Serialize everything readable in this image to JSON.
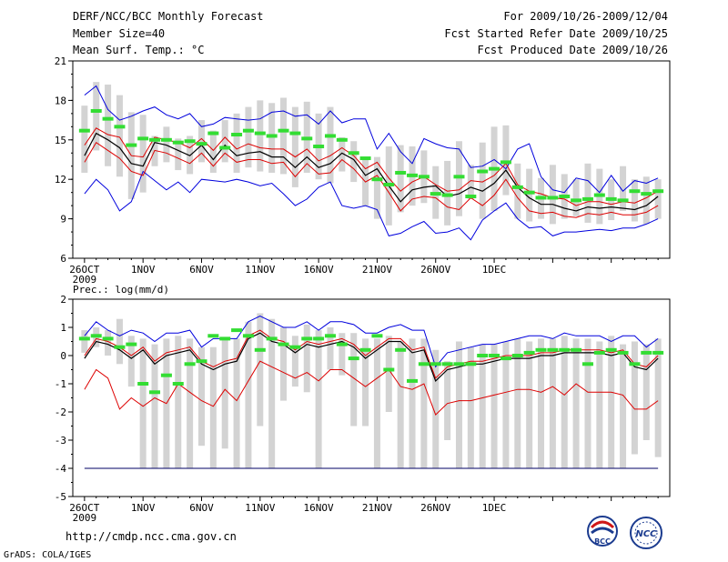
{
  "header": {
    "title": "DERF/NCC/BCC Monthly Forecast",
    "member": "Member Size=40",
    "variable": "Mean Surf. Temp.: °C",
    "period": "For 2009/10/26-2009/12/04",
    "started": "Fcst Started Refer Date 2009/10/25",
    "produced": "Fcst Produced Date 2009/10/26"
  },
  "footer": {
    "url": "http://cmdp.ncc.cma.gov.cn",
    "grads": "GrADS: COLA/IGES",
    "logo_bcc": "BCC",
    "logo_ncc": "NCC"
  },
  "colors": {
    "box": "#d3d3d3",
    "mean": "#000000",
    "inner": "#dd0000",
    "outer": "#0000dd",
    "obs": "#33dd33",
    "baseline": "#000066"
  },
  "chart_data": [
    {
      "type": "line",
      "title": "Mean Surf. Temp.: °C",
      "ylim": [
        6,
        21
      ],
      "yticks": [
        "6",
        "9",
        "12",
        "15",
        "18",
        "21"
      ],
      "xticks": [
        "26OCT",
        "1NOV",
        "6NOV",
        "11NOV",
        "16NOV",
        "21NOV",
        "26NOV",
        "1DEC"
      ],
      "xtick_sub": "2009",
      "box_low": [
        12.5,
        14.2,
        13.0,
        12.2,
        10.5,
        11.0,
        13.0,
        13.3,
        12.7,
        12.4,
        13.3,
        12.5,
        13.3,
        12.5,
        12.9,
        12.6,
        12.5,
        12.4,
        11.4,
        12.5,
        12.0,
        11.7,
        12.6,
        11.8,
        10.0,
        9.0,
        8.5,
        9.5,
        10.0,
        10.2,
        9.0,
        8.5,
        9.2,
        10.5,
        9.0,
        9.6,
        10.8,
        9.0,
        8.8,
        9.0,
        8.6,
        9.0,
        9.2,
        8.7,
        8.6,
        8.9,
        9.6,
        8.8,
        8.6,
        9.0
      ],
      "box_high": [
        17.6,
        19.4,
        19.2,
        18.4,
        17.1,
        16.9,
        15.3,
        16.0,
        15.1,
        15.3,
        16.5,
        15.7,
        16.5,
        17.0,
        17.5,
        18.0,
        17.8,
        18.2,
        17.5,
        17.9,
        17.0,
        17.5,
        15.2,
        14.9,
        13.5,
        13.7,
        14.5,
        14.6,
        14.5,
        14.2,
        13.0,
        13.4,
        14.9,
        13.1,
        14.8,
        16.0,
        16.1,
        13.2,
        12.8,
        12.1,
        13.1,
        12.4,
        12.0,
        13.2,
        12.8,
        12.0,
        13.0,
        12.0,
        12.2,
        12.0
      ],
      "mean": [
        13.8,
        15.5,
        15.0,
        14.4,
        13.2,
        13.0,
        14.8,
        14.6,
        14.2,
        13.8,
        14.6,
        13.5,
        14.6,
        13.8,
        14.0,
        14.1,
        13.7,
        13.7,
        12.9,
        13.7,
        12.9,
        13.2,
        14.0,
        13.5,
        12.3,
        12.8,
        11.5,
        10.3,
        11.2,
        11.4,
        11.5,
        10.7,
        10.9,
        11.4,
        11.1,
        11.7,
        12.7,
        11.4,
        10.6,
        10.1,
        10.1,
        9.8,
        9.6,
        9.9,
        9.8,
        9.9,
        9.8,
        9.7,
        10.0,
        10.7
      ],
      "inner_high": [
        14.6,
        15.9,
        15.4,
        15.2,
        13.8,
        13.7,
        15.2,
        15.0,
        14.8,
        14.4,
        15.1,
        14.2,
        15.2,
        14.3,
        14.7,
        14.4,
        14.3,
        14.3,
        13.7,
        14.3,
        13.4,
        13.8,
        14.4,
        13.8,
        12.8,
        13.3,
        12.1,
        11.1,
        11.8,
        12.2,
        11.6,
        11.1,
        11.2,
        11.9,
        11.8,
        12.3,
        13.2,
        11.6,
        11.1,
        10.9,
        10.6,
        10.5,
        10.0,
        10.3,
        10.3,
        10.1,
        10.3,
        10.2,
        10.6,
        11.1
      ],
      "inner_low": [
        13.3,
        14.8,
        14.2,
        13.6,
        12.6,
        12.3,
        14.2,
        14.0,
        13.6,
        13.2,
        14.0,
        13.0,
        14.0,
        13.3,
        13.5,
        13.5,
        13.2,
        13.3,
        12.2,
        13.2,
        12.4,
        12.5,
        13.5,
        12.8,
        11.8,
        12.3,
        11.0,
        9.6,
        10.5,
        10.7,
        10.6,
        9.9,
        9.7,
        10.6,
        10.0,
        10.8,
        12.0,
        10.6,
        9.6,
        9.4,
        9.5,
        9.2,
        9.1,
        9.4,
        9.3,
        9.5,
        9.3,
        9.3,
        9.5,
        10.0
      ],
      "outer_high": [
        18.4,
        19.1,
        17.3,
        16.5,
        16.8,
        17.2,
        17.5,
        16.9,
        16.6,
        17.0,
        16.0,
        16.2,
        16.7,
        16.6,
        16.5,
        16.6,
        17.1,
        17.2,
        16.8,
        16.9,
        16.2,
        17.2,
        16.3,
        16.6,
        16.6,
        14.3,
        15.5,
        14.1,
        13.2,
        15.1,
        14.7,
        14.4,
        14.3,
        12.9,
        13.0,
        13.5,
        12.8,
        14.3,
        14.7,
        12.2,
        11.2,
        11.0,
        12.1,
        11.9,
        11.0,
        12.3,
        11.1,
        11.9,
        11.7,
        12.1
      ],
      "outer_low": [
        10.9,
        12.0,
        11.2,
        9.6,
        10.3,
        12.6,
        11.9,
        11.2,
        11.8,
        11.0,
        12.0,
        11.9,
        11.8,
        12.0,
        11.8,
        11.5,
        11.7,
        10.9,
        10.0,
        10.5,
        11.4,
        11.8,
        10.0,
        9.8,
        10.0,
        9.7,
        7.7,
        7.9,
        8.4,
        8.8,
        7.9,
        8.0,
        8.3,
        7.4,
        8.9,
        9.6,
        10.2,
        9.0,
        8.3,
        8.4,
        7.7,
        8.0,
        8.0,
        8.1,
        8.2,
        8.1,
        8.3,
        8.3,
        8.6,
        9.0
      ],
      "obs": [
        15.7,
        17.2,
        16.6,
        16.0,
        14.6,
        15.1,
        15.0,
        15.0,
        14.8,
        14.9,
        14.7,
        15.5,
        14.4,
        15.4,
        15.7,
        15.5,
        15.3,
        15.7,
        15.5,
        15.1,
        14.5,
        15.3,
        15.0,
        14.0,
        13.6,
        12.0,
        11.6,
        12.5,
        12.3,
        12.2,
        10.9,
        10.8,
        12.2,
        10.7,
        12.6,
        12.8,
        13.3,
        11.4,
        11.0,
        10.6,
        10.6,
        10.7,
        10.4,
        10.5,
        10.8,
        10.5,
        10.4,
        11.1,
        10.9,
        11.1
      ]
    },
    {
      "type": "line",
      "title": "Prec.: log(mm/d)",
      "ylim": [
        -5,
        2
      ],
      "yticks": [
        "-5",
        "-4",
        "-3",
        "-2",
        "-1",
        "0",
        "1",
        "2"
      ],
      "xticks": [
        "26OCT",
        "1NOV",
        "6NOV",
        "11NOV",
        "16NOV",
        "21NOV",
        "26NOV",
        "1DEC"
      ],
      "xtick_sub": "2009",
      "box_low": [
        0.1,
        0.3,
        0.0,
        -0.3,
        -1.1,
        -4.0,
        -4.0,
        -4.0,
        -4.0,
        -4.0,
        -3.2,
        -4.0,
        -3.3,
        -4.0,
        -4.0,
        -2.5,
        -4.0,
        -1.6,
        -1.1,
        -1.3,
        -4.0,
        -0.5,
        -0.7,
        -2.5,
        -2.5,
        -4.0,
        -2.0,
        -4.0,
        -4.0,
        -4.0,
        -4.0,
        -3.0,
        -4.0,
        -4.0,
        -4.0,
        -4.0,
        -4.0,
        -4.0,
        -4.0,
        -4.0,
        -4.0,
        -4.0,
        -4.0,
        -4.0,
        -4.0,
        -4.0,
        -4.0,
        -3.5,
        -3.0,
        -3.6
      ],
      "box_high": [
        0.9,
        1.0,
        0.9,
        1.3,
        0.7,
        0.6,
        0.4,
        0.6,
        0.7,
        0.6,
        0.3,
        0.3,
        0.6,
        0.6,
        1.2,
        1.5,
        1.3,
        1.0,
        0.7,
        1.1,
        0.9,
        1.0,
        0.8,
        0.8,
        0.6,
        0.6,
        0.7,
        0.5,
        0.6,
        0.6,
        0.2,
        -0.2,
        0.5,
        0.3,
        0.4,
        0.4,
        0.5,
        0.6,
        0.5,
        0.6,
        0.6,
        0.7,
        0.6,
        0.6,
        0.5,
        0.7,
        0.4,
        0.5,
        0.4,
        0.6
      ],
      "mean": [
        -0.1,
        0.5,
        0.4,
        0.2,
        -0.1,
        0.2,
        -0.3,
        0.0,
        0.1,
        0.2,
        -0.3,
        -0.5,
        -0.3,
        -0.2,
        0.6,
        0.8,
        0.5,
        0.4,
        0.1,
        0.4,
        0.3,
        0.4,
        0.5,
        0.3,
        -0.1,
        0.2,
        0.5,
        0.5,
        0.1,
        0.2,
        -0.9,
        -0.5,
        -0.4,
        -0.3,
        -0.3,
        -0.2,
        -0.1,
        -0.1,
        -0.1,
        0.0,
        0.0,
        0.1,
        0.1,
        0.1,
        0.1,
        0.0,
        0.1,
        -0.4,
        -0.5,
        -0.1
      ],
      "inner_high": [
        0.0,
        0.6,
        0.5,
        0.3,
        0.0,
        0.3,
        -0.2,
        0.1,
        0.2,
        0.3,
        -0.2,
        -0.4,
        -0.2,
        -0.1,
        0.7,
        0.9,
        0.6,
        0.5,
        0.2,
        0.5,
        0.4,
        0.5,
        0.6,
        0.4,
        0.0,
        0.3,
        0.6,
        0.6,
        0.2,
        0.3,
        -0.8,
        -0.4,
        -0.3,
        -0.2,
        -0.2,
        -0.1,
        0.0,
        0.0,
        0.0,
        0.1,
        0.1,
        0.2,
        0.2,
        0.2,
        0.2,
        0.1,
        0.2,
        -0.3,
        -0.4,
        0.0
      ],
      "inner_low": [
        -1.2,
        -0.5,
        -0.8,
        -1.9,
        -1.5,
        -1.8,
        -1.5,
        -1.7,
        -1.0,
        -1.3,
        -1.6,
        -1.8,
        -1.2,
        -1.6,
        -0.9,
        -0.2,
        -0.4,
        -0.6,
        -0.8,
        -0.6,
        -0.9,
        -0.5,
        -0.5,
        -0.8,
        -1.1,
        -0.8,
        -0.5,
        -1.1,
        -1.2,
        -1.0,
        -2.1,
        -1.7,
        -1.6,
        -1.6,
        -1.5,
        -1.4,
        -1.3,
        -1.2,
        -1.2,
        -1.3,
        -1.1,
        -1.4,
        -1.0,
        -1.3,
        -1.3,
        -1.3,
        -1.4,
        -1.9,
        -1.9,
        -1.6
      ],
      "outer_high": [
        0.7,
        1.2,
        0.9,
        0.7,
        0.9,
        0.8,
        0.5,
        0.8,
        0.8,
        0.9,
        0.3,
        0.6,
        0.6,
        0.6,
        1.2,
        1.4,
        1.2,
        1.0,
        1.0,
        1.2,
        0.9,
        1.2,
        1.2,
        1.1,
        0.8,
        0.8,
        1.0,
        1.1,
        0.9,
        0.9,
        -0.4,
        0.1,
        0.2,
        0.3,
        0.4,
        0.4,
        0.5,
        0.6,
        0.7,
        0.7,
        0.6,
        0.8,
        0.7,
        0.7,
        0.7,
        0.5,
        0.7,
        0.7,
        0.3,
        0.6
      ],
      "outer_low": [
        -4.0,
        -4.0,
        -4.0,
        -4.0,
        -4.0,
        -4.0,
        -4.0,
        -4.0,
        -4.0,
        -4.0,
        -4.0,
        -4.0,
        -4.0,
        -4.0,
        -4.0,
        -4.0,
        -4.0,
        -4.0,
        -4.0,
        -4.0,
        -4.0,
        -4.0,
        -4.0,
        -4.0,
        -4.0,
        -4.0,
        -4.0,
        -4.0,
        -4.0,
        -4.0,
        -4.0,
        -4.0,
        -4.0,
        -4.0,
        -4.0,
        -4.0,
        -4.0,
        -4.0,
        -4.0,
        -4.0,
        -4.0,
        -4.0,
        -4.0,
        -4.0,
        -4.0,
        -4.0,
        -4.0,
        -4.0,
        -4.0,
        -4.0
      ],
      "obs": [
        0.6,
        0.7,
        0.6,
        0.3,
        0.4,
        -1.0,
        -1.3,
        -0.7,
        -1.0,
        -0.3,
        -0.2,
        0.7,
        0.6,
        0.9,
        0.7,
        0.2,
        0.6,
        0.4,
        0.3,
        0.6,
        0.6,
        0.7,
        0.4,
        -0.1,
        0.2,
        0.7,
        -0.5,
        0.2,
        -0.9,
        -0.3,
        -0.3,
        -0.3,
        -0.3,
        -0.3,
        0.0,
        0.0,
        -0.1,
        0.0,
        0.1,
        0.2,
        0.2,
        0.2,
        0.2,
        -0.3,
        0.1,
        0.2,
        0.1,
        -0.3,
        0.1,
        0.1
      ]
    }
  ]
}
